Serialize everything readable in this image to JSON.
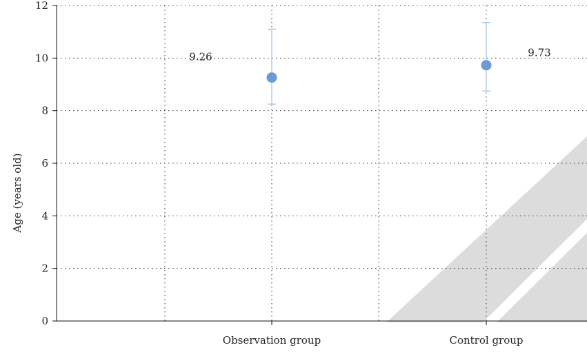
{
  "chart_data": {
    "type": "scatter",
    "categories": [
      "Observation group",
      "Control group"
    ],
    "series": [
      {
        "values": [
          9.26,
          9.73
        ],
        "error_low": [
          8.25,
          8.75
        ],
        "error_high": [
          11.1,
          11.35
        ],
        "labels": [
          "9.26",
          "9.73"
        ]
      }
    ],
    "title": "",
    "xlabel": "",
    "ylabel": "Age (years old)",
    "ylim": [
      0,
      12
    ],
    "yticks": [
      "0",
      "2",
      "4",
      "6",
      "8",
      "10",
      "12"
    ],
    "grid": true,
    "colors": {
      "marker": "#6b9bd2",
      "errorbar": "#9fbfe6",
      "axis": "#111111",
      "watermark": "#dcdcdc"
    }
  }
}
